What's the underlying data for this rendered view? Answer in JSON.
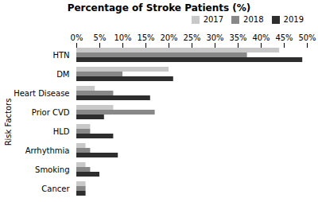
{
  "chart_data": {
    "type": "bar",
    "orientation": "horizontal",
    "title": "Percentage of Stroke Patients (%)",
    "ylabel": "Risk Factors",
    "categories": [
      "HTN",
      "DM",
      "Heart Disease",
      "Prior CVD",
      "HLD",
      "Arrhythmia",
      "Smoking",
      "Cancer"
    ],
    "series": [
      {
        "name": "2017",
        "color": "#c8c8c8",
        "values": [
          44,
          20,
          4,
          8,
          3,
          2,
          2,
          2
        ]
      },
      {
        "name": "2018",
        "color": "#888888",
        "values": [
          37,
          10,
          8,
          17,
          3,
          3,
          3,
          2
        ]
      },
      {
        "name": "2019",
        "color": "#2e2e2e",
        "values": [
          49,
          21,
          16,
          6,
          8,
          9,
          5,
          2
        ]
      }
    ],
    "xlim": [
      0,
      50
    ],
    "xticks": [
      {
        "value": 0,
        "label": "0%"
      },
      {
        "value": 5,
        "label": "5%"
      },
      {
        "value": 10,
        "label": "10%"
      },
      {
        "value": 15,
        "label": "15%"
      },
      {
        "value": 20,
        "label": "20%"
      },
      {
        "value": 25,
        "label": "25%"
      },
      {
        "value": 30,
        "label": "30%"
      },
      {
        "value": 35,
        "label": "35%"
      },
      {
        "value": 40,
        "label": "40%"
      },
      {
        "value": 45,
        "label": "45%"
      },
      {
        "value": 50,
        "label": "50%"
      }
    ],
    "grid": false,
    "legend": "right"
  }
}
